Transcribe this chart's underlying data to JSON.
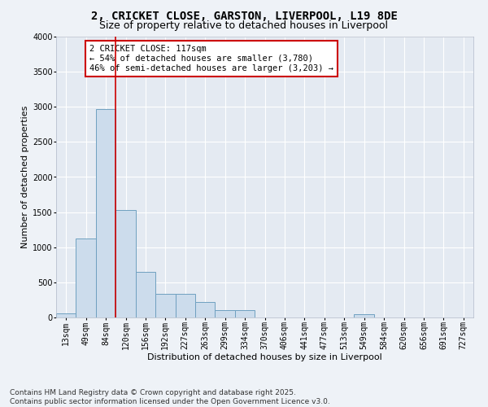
{
  "title_line1": "2, CRICKET CLOSE, GARSTON, LIVERPOOL, L19 8DE",
  "title_line2": "Size of property relative to detached houses in Liverpool",
  "xlabel": "Distribution of detached houses by size in Liverpool",
  "ylabel": "Number of detached properties",
  "bar_labels": [
    "13sqm",
    "49sqm",
    "84sqm",
    "120sqm",
    "156sqm",
    "192sqm",
    "227sqm",
    "263sqm",
    "299sqm",
    "334sqm",
    "370sqm",
    "406sqm",
    "441sqm",
    "477sqm",
    "513sqm",
    "549sqm",
    "584sqm",
    "620sqm",
    "656sqm",
    "691sqm",
    "727sqm"
  ],
  "bar_heights": [
    60,
    1120,
    2970,
    1530,
    650,
    340,
    340,
    220,
    110,
    110,
    0,
    0,
    0,
    0,
    0,
    50,
    0,
    0,
    0,
    0,
    0
  ],
  "bar_color": "#ccdcec",
  "bar_edgecolor": "#6fa0c0",
  "vline_color": "#cc0000",
  "vline_position": 2.5,
  "annotation_text": "2 CRICKET CLOSE: 117sqm\n← 54% of detached houses are smaller (3,780)\n46% of semi-detached houses are larger (3,203) →",
  "annotation_box_facecolor": "#ffffff",
  "annotation_box_edgecolor": "#cc0000",
  "ylim": [
    0,
    4000
  ],
  "yticks": [
    0,
    500,
    1000,
    1500,
    2000,
    2500,
    3000,
    3500,
    4000
  ],
  "background_color": "#eef2f7",
  "plot_background": "#e4eaf2",
  "grid_color": "#ffffff",
  "title_fontsize": 10,
  "subtitle_fontsize": 9,
  "axis_label_fontsize": 8,
  "tick_fontsize": 7,
  "annotation_fontsize": 7.5,
  "footnote_fontsize": 6.5,
  "footnote": "Contains HM Land Registry data © Crown copyright and database right 2025.\nContains public sector information licensed under the Open Government Licence v3.0."
}
